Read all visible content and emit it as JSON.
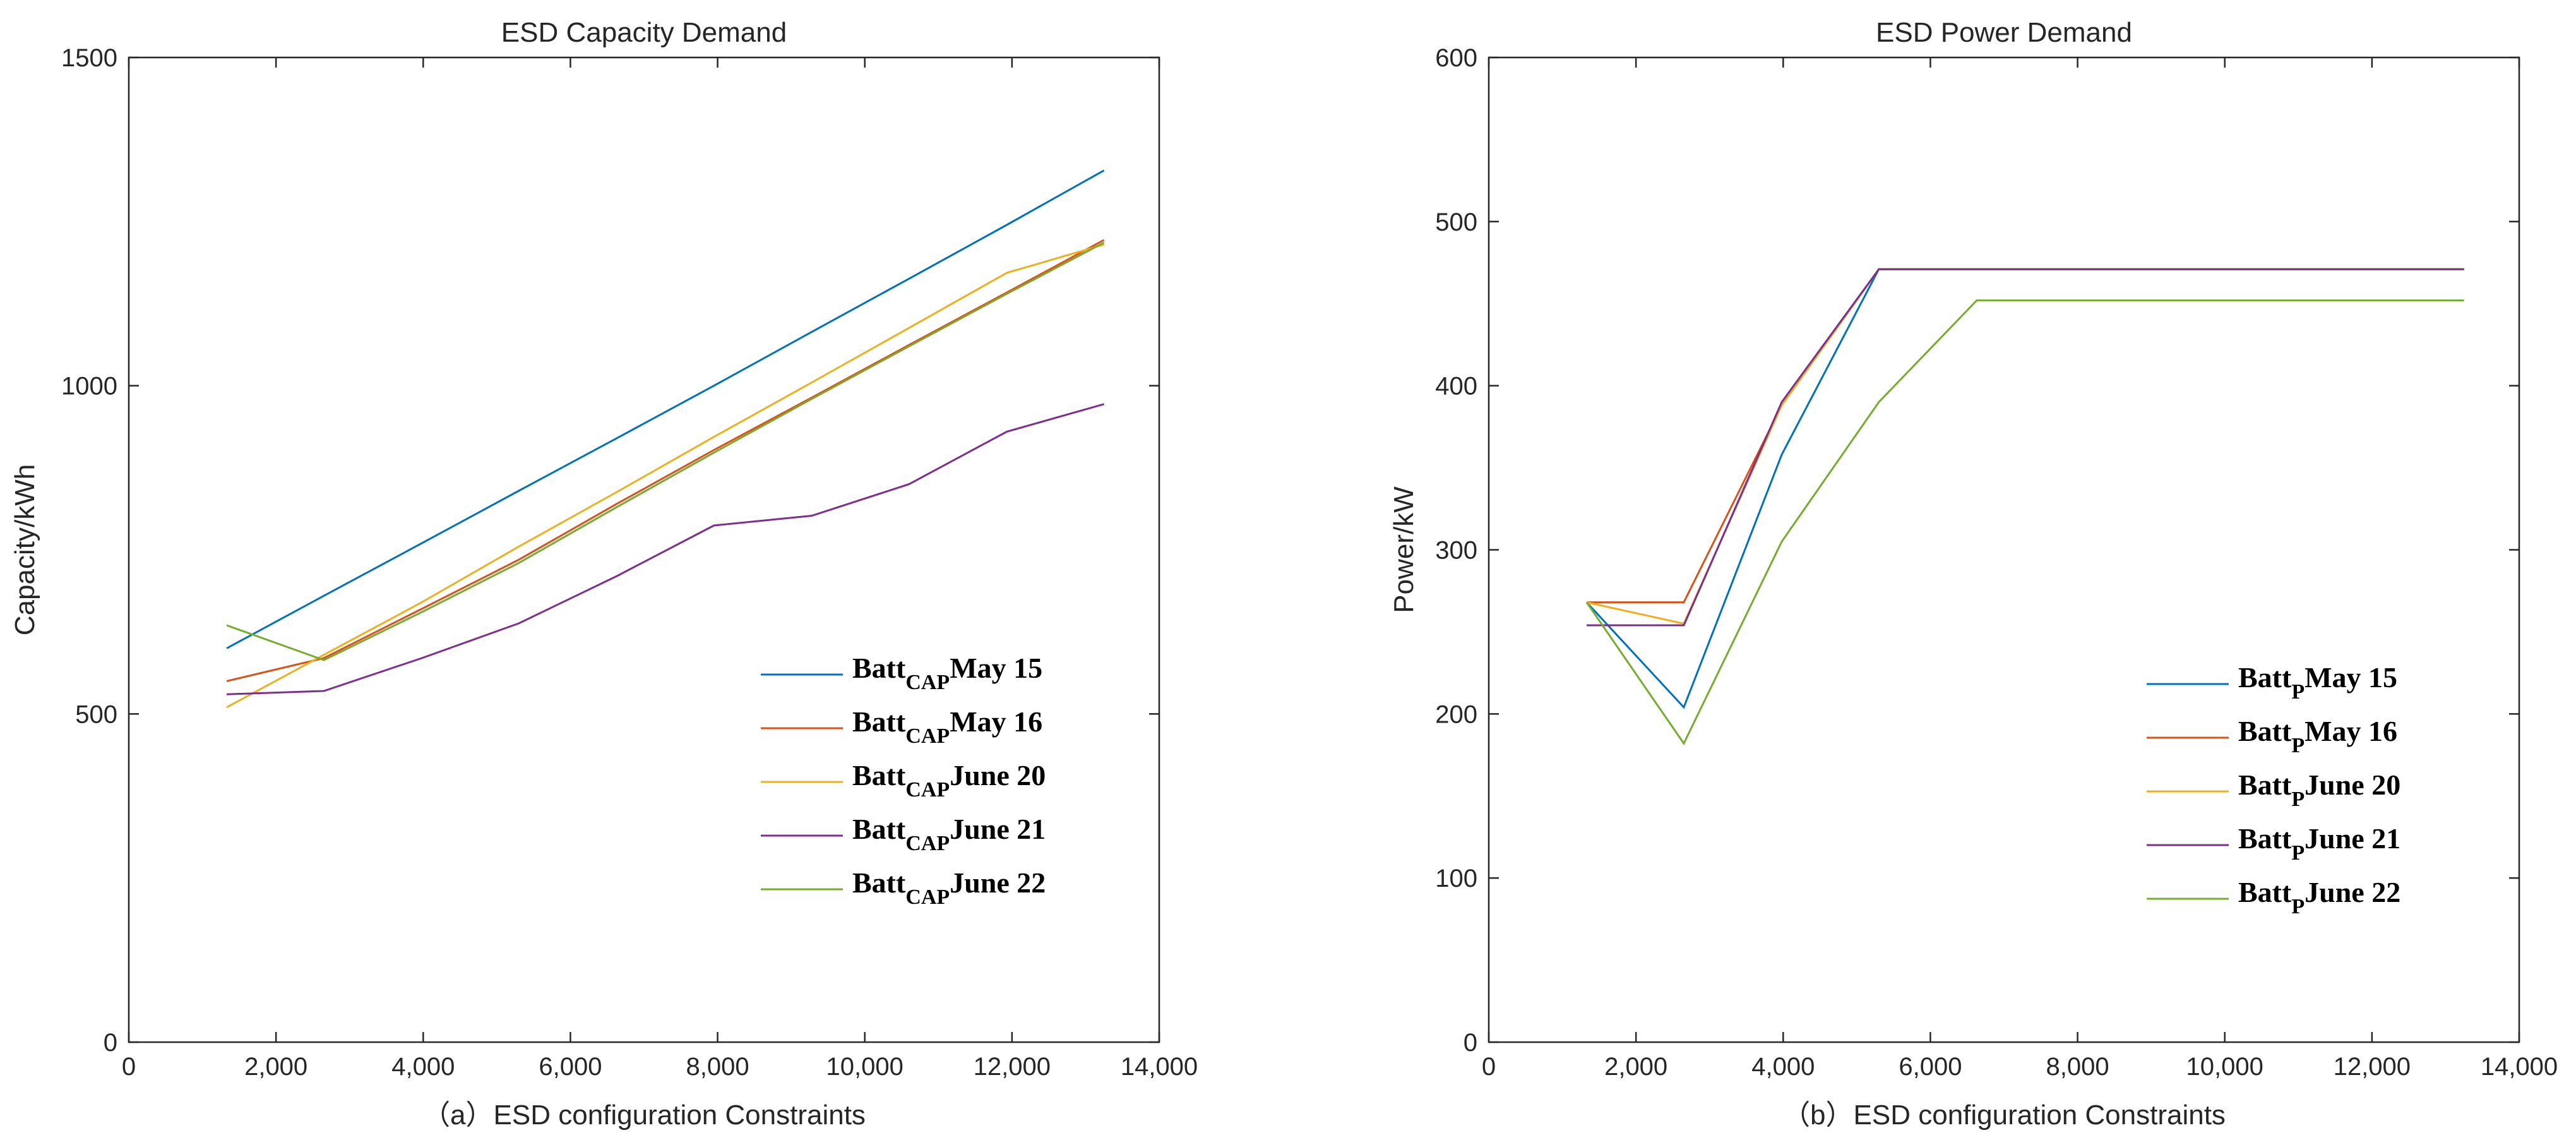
{
  "colors": [
    "#0072BD",
    "#D95319",
    "#EDB120",
    "#7E2F8E",
    "#77AC30"
  ],
  "chart_data": [
    {
      "type": "line",
      "title": "ESD Capacity Demand",
      "xlabel": "（a）ESD configuration Constraints",
      "ylabel": "Capacity/kWh",
      "xlim": [
        0,
        14000
      ],
      "ylim": [
        0,
        1500
      ],
      "xticks": [
        0,
        2000,
        4000,
        6000,
        8000,
        10000,
        12000,
        14000
      ],
      "xtick_labels": [
        "0",
        "2,000",
        "4,000",
        "6,000",
        "8,000",
        "10,000",
        "12,000",
        "14,000"
      ],
      "yticks": [
        0,
        500,
        1000,
        1500
      ],
      "ytick_labels": [
        "0",
        "500",
        "1000",
        "1500"
      ],
      "legend_location": "lower-right",
      "x": [
        1330,
        2650,
        3980,
        5300,
        6630,
        7950,
        9280,
        10600,
        11930,
        13250
      ],
      "series": [
        {
          "base": "Batt",
          "sub": "CAP",
          "date": "May 15",
          "values": [
            600,
            680,
            760,
            840,
            920,
            1000,
            1082,
            1163,
            1245,
            1328
          ]
        },
        {
          "base": "Batt",
          "sub": "CAP",
          "date": "May 16",
          "values": [
            550,
            585,
            660,
            735,
            820,
            902,
            982,
            1062,
            1142,
            1222
          ]
        },
        {
          "base": "Batt",
          "sub": "CAP",
          "date": "June 20",
          "values": [
            510,
            590,
            670,
            755,
            838,
            922,
            1005,
            1088,
            1172,
            1215
          ]
        },
        {
          "base": "Batt",
          "sub": "CAP",
          "date": "June 21",
          "values": [
            530,
            535,
            585,
            638,
            710,
            787,
            802,
            850,
            930,
            972
          ]
        },
        {
          "base": "Batt",
          "sub": "CAP",
          "date": "June 22",
          "values": [
            635,
            582,
            655,
            730,
            815,
            898,
            980,
            1060,
            1140,
            1218
          ]
        }
      ]
    },
    {
      "type": "line",
      "title": "ESD Power Demand",
      "xlabel": "（b）ESD configuration Constraints",
      "ylabel": "Power/kW",
      "xlim": [
        0,
        14000
      ],
      "ylim": [
        0,
        600
      ],
      "xticks": [
        0,
        2000,
        4000,
        6000,
        8000,
        10000,
        12000,
        14000
      ],
      "xtick_labels": [
        "0",
        "2,000",
        "4,000",
        "6,000",
        "8,000",
        "10,000",
        "12,000",
        "14,000"
      ],
      "yticks": [
        0,
        100,
        200,
        300,
        400,
        500,
        600
      ],
      "ytick_labels": [
        "0",
        "100",
        "200",
        "300",
        "400",
        "500",
        "600"
      ],
      "legend_location": "lower-right",
      "x": [
        1330,
        2650,
        3980,
        5300,
        6630,
        7950,
        9280,
        10600,
        11930,
        13250
      ],
      "series": [
        {
          "base": "Batt",
          "sub": "P",
          "date": "May 15",
          "values": [
            268,
            204,
            358,
            471,
            471,
            471,
            471,
            471,
            471,
            471
          ]
        },
        {
          "base": "Batt",
          "sub": "P",
          "date": "May 16",
          "values": [
            268,
            268,
            388,
            471,
            471,
            471,
            471,
            471,
            471,
            471
          ]
        },
        {
          "base": "Batt",
          "sub": "P",
          "date": "June 20",
          "values": [
            268,
            255,
            388,
            471,
            471,
            471,
            471,
            471,
            471,
            471
          ]
        },
        {
          "base": "Batt",
          "sub": "P",
          "date": "June 21",
          "values": [
            254,
            254,
            390,
            471,
            471,
            471,
            471,
            471,
            471,
            471
          ]
        },
        {
          "base": "Batt",
          "sub": "P",
          "date": "June 22",
          "values": [
            268,
            182,
            305,
            390,
            452,
            452,
            452,
            452,
            452,
            452
          ]
        }
      ]
    }
  ]
}
